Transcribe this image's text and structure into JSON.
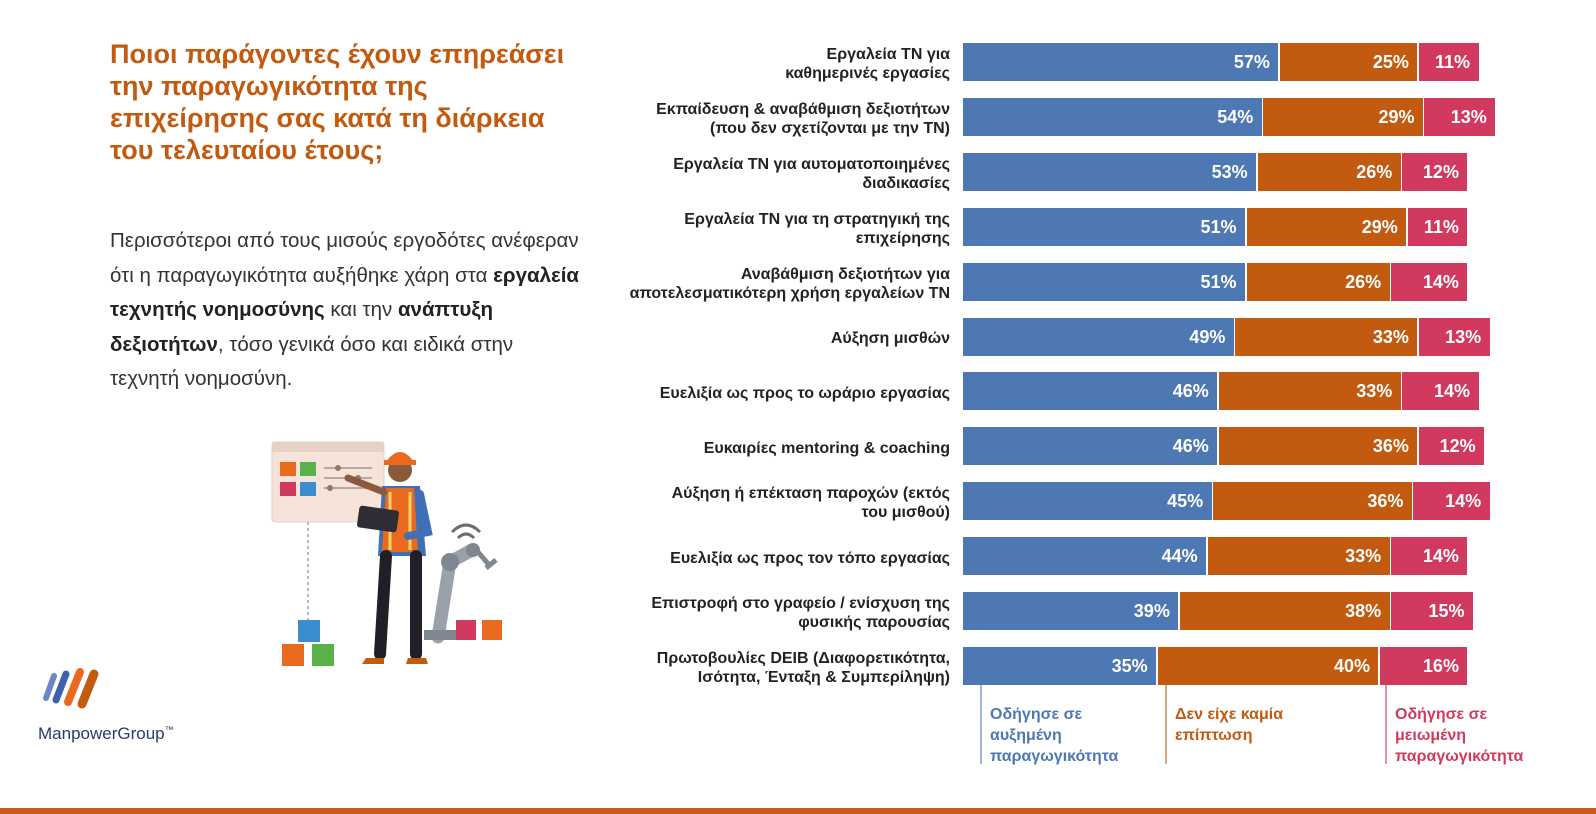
{
  "colors": {
    "increased": "#4e78b4",
    "no_impact": "#c25a0f",
    "decreased": "#d13a5e",
    "title": "#c25a0f"
  },
  "title": "Ποιοι παράγοντες έχουν επηρεάσει την παραγωγικότητα της επιχείρησης σας κατά τη διάρκεια του τελευταίου έτους;",
  "body": {
    "part1": "Περισσότεροι από τους μισούς εργοδότες ανέφεραν ότι η παραγωγικότητα αυξήθηκε χάρη στα ",
    "bold1": "εργαλεία τεχνητής νοημοσύνης",
    "part2": " και την ",
    "bold2": "ανάπτυξη δεξιοτήτων",
    "part3": ", τόσο γενικά όσο και ειδικά στην τεχνητή νοημοσύνη."
  },
  "logo": {
    "name": "ManpowerGroup",
    "mark": "™"
  },
  "chart_data": {
    "type": "bar",
    "orientation": "horizontal",
    "stacked": true,
    "value_format": "percent",
    "categories": [
      [
        "Εργαλεία ΤΝ για",
        "καθημερινές εργασίες"
      ],
      [
        "Εκπαίδευση & αναβάθμιση δεξιοτήτων",
        "(που δεν σχετίζονται με την ΤΝ)"
      ],
      [
        "Εργαλεία ΤΝ για αυτοματοποιημένες",
        "διαδικασίες"
      ],
      [
        "Εργαλεία ΤΝ για τη στρατηγική της",
        "επιχείρησης"
      ],
      [
        "Αναβάθμιση δεξιοτήτων για",
        "αποτελεσματικότερη χρήση εργαλείων ΤΝ"
      ],
      [
        "Αύξηση μισθών"
      ],
      [
        "Ευελιξία ως προς το ωράριο εργασίας"
      ],
      [
        "Ευκαιρίες mentoring & coaching"
      ],
      [
        "Αύξηση ή επέκταση παροχών (εκτός",
        "του μισθού)"
      ],
      [
        "Ευελιξία ως προς τον τόπο εργασίας"
      ],
      [
        "Επιστροφή στο γραφείο / ενίσχυση της",
        "φυσικής παρουσίας"
      ],
      [
        "Πρωτοβουλίες DEIB (Διαφορετικότητα,",
        "Ισότητα, Ένταξη & Συμπερίληψη)"
      ]
    ],
    "series": [
      {
        "name": "Οδήγησε σε αυξημένη παραγωγικότητα",
        "legend_lines": [
          "Οδήγησε σε",
          "αυξημένη",
          "παραγωγικότητα"
        ],
        "color": "#4e78b4",
        "values": [
          57,
          54,
          53,
          51,
          51,
          49,
          46,
          46,
          45,
          44,
          39,
          35
        ]
      },
      {
        "name": "Δεν είχε καμία επίπτωση",
        "legend_lines": [
          "Δεν είχε καμία",
          "επίπτωση"
        ],
        "color": "#c25a0f",
        "values": [
          25,
          29,
          26,
          29,
          26,
          33,
          33,
          36,
          36,
          33,
          38,
          40
        ]
      },
      {
        "name": "Οδήγησε σε μειωμένη παραγωγικότητα",
        "legend_lines": [
          "Οδήγησε σε",
          "μειωμένη",
          "παραγωγικότητα"
        ],
        "color": "#d13a5e",
        "values": [
          11,
          13,
          12,
          11,
          14,
          13,
          14,
          12,
          14,
          14,
          15,
          16
        ]
      }
    ],
    "legend_position": "bottom",
    "grid": false
  }
}
